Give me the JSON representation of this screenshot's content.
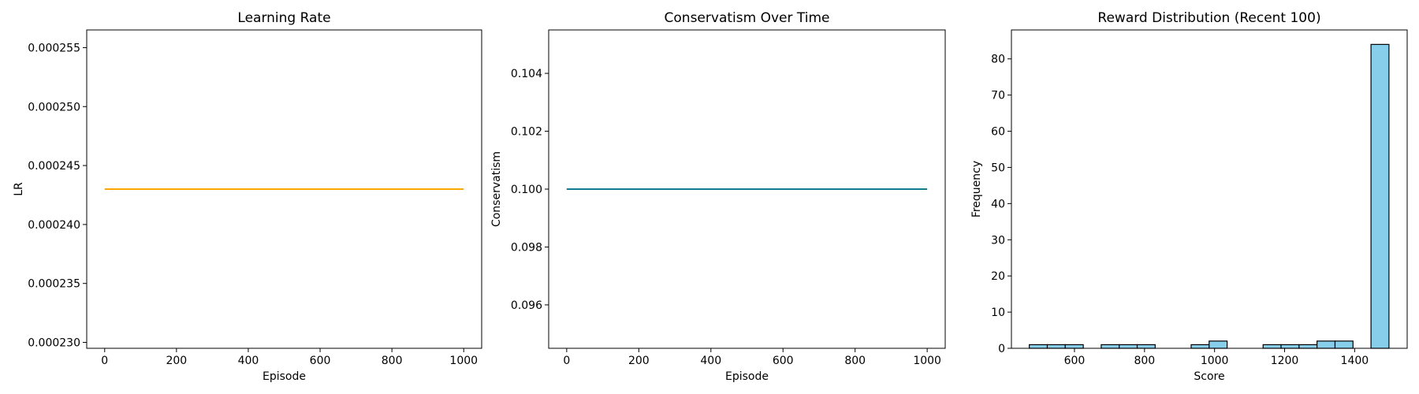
{
  "chart_data": [
    {
      "type": "line",
      "title": "Learning Rate",
      "xlabel": "Episode",
      "ylabel": "LR",
      "x": [
        0,
        1000
      ],
      "values": [
        0.000243,
        0.000243
      ],
      "color": "#ffa500",
      "xlim": [
        -50,
        1050
      ],
      "xticks": [
        0,
        200,
        400,
        600,
        800,
        1000
      ],
      "ylim": [
        0.0002295,
        0.0002565
      ],
      "yticks": [
        {
          "value": 0.00023,
          "label": "0.000230"
        },
        {
          "value": 0.000235,
          "label": "0.000235"
        },
        {
          "value": 0.00024,
          "label": "0.000240"
        },
        {
          "value": 0.000245,
          "label": "0.000245"
        },
        {
          "value": 0.00025,
          "label": "0.000250"
        },
        {
          "value": 0.000255,
          "label": "0.000255"
        }
      ]
    },
    {
      "type": "line",
      "title": "Conservatism Over Time",
      "xlabel": "Episode",
      "ylabel": "Conservatism",
      "x": [
        0,
        1000
      ],
      "values": [
        0.1,
        0.1
      ],
      "color": "#137a8f",
      "xlim": [
        -50,
        1050
      ],
      "xticks": [
        0,
        200,
        400,
        600,
        800,
        1000
      ],
      "ylim": [
        0.0945,
        0.1055
      ],
      "yticks": [
        0.096,
        0.098,
        {
          "value": 0.1,
          "label": "0.100"
        },
        0.102,
        0.104
      ]
    },
    {
      "type": "histogram",
      "title": "Reward Distribution (Recent 100)",
      "xlabel": "Score",
      "ylabel": "Frequency",
      "bins": [
        471,
        522.4,
        573.7,
        625.1,
        676.4,
        727.8,
        779.1,
        830.5,
        881.8,
        933.2,
        984.5,
        1035.9,
        1087.2,
        1138.6,
        1189.9,
        1241.3,
        1292.6,
        1344,
        1395.3,
        1446.7,
        1498
      ],
      "values": [
        1,
        1,
        1,
        0,
        1,
        1,
        1,
        0,
        0,
        1,
        2,
        0,
        0,
        1,
        1,
        1,
        2,
        2,
        0,
        84
      ],
      "color": "#87ceeb",
      "edgecolor": "#000000",
      "xlim": [
        420,
        1550
      ],
      "xticks": [
        600,
        800,
        1000,
        1200,
        1400
      ],
      "ylim": [
        0,
        88
      ],
      "yticks": [
        0,
        10,
        20,
        30,
        40,
        50,
        60,
        70,
        80
      ]
    }
  ]
}
